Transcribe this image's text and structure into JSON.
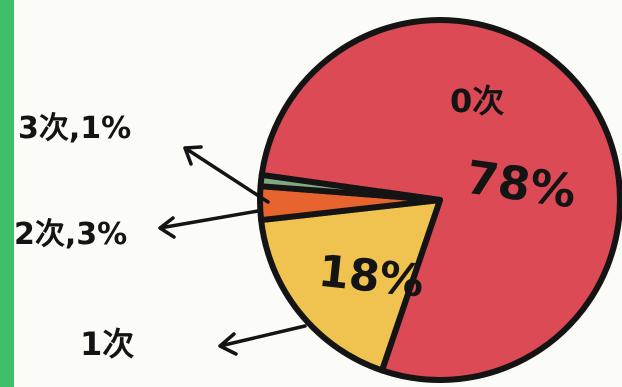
{
  "chart_data": {
    "type": "pie",
    "categories": [
      "0次",
      "1次",
      "2次",
      "3次"
    ],
    "values": [
      78,
      18,
      3,
      1
    ],
    "labels": {
      "zero_cat": "0次",
      "zero_pct": "78%",
      "one_cat": "1次",
      "one_pct": "18%",
      "two": "2次,3%",
      "three": "3次,1%"
    },
    "colors": {
      "zero": "#dc4b55",
      "one": "#f0c24f",
      "two": "#e8642e",
      "three": "#7fa983",
      "outline": "#141414"
    }
  }
}
